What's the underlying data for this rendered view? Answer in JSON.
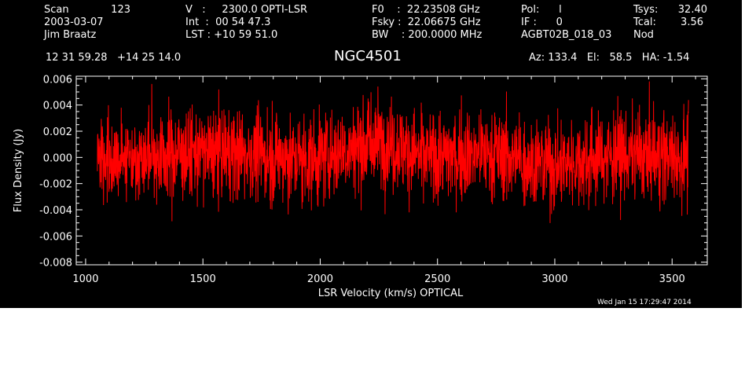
{
  "header": {
    "col1": {
      "scan_label": "Scan",
      "scan_value": "123",
      "date": "2003-03-07",
      "observer": "Jim Braatz"
    },
    "col2": {
      "v_line": "V   :     2300.0 OPTI-LSR",
      "int_line": "Int  :  00 54 47.3",
      "lst_line": "LST : +10 59 51.0"
    },
    "col3": {
      "f0_line": "F0    :  22.23508 GHz",
      "fsky_line": "Fsky :  22.06675 GHz",
      "bw_line": "BW    : 200.0000 MHz"
    },
    "col4": {
      "pol_line": "Pol:      l",
      "if_line": "IF :      0",
      "project": "AGBT02B_018_03"
    },
    "col5": {
      "tsys_label": "Tsys:",
      "tsys_value": "32.40",
      "tcal_label": "Tcal:",
      "tcal_value": "3.56",
      "mode": "Nod"
    },
    "coords": "12 31 59.28   +14 25 14.0",
    "source": "NGC4501",
    "pointing": "Az: 133.4   El:   58.5   HA: -1.54"
  },
  "footer": {
    "date": "Wed Jan 15 17:29:47 2014"
  },
  "colors": {
    "background": "#000000",
    "axes": "#ffffff",
    "series": "#ff0000"
  },
  "chart_data": {
    "type": "line",
    "title": "NGC4501",
    "xlabel": "LSR Velocity (km/s) OPTICAL",
    "ylabel": "Flux Density (Jy)",
    "xlim": [
      960,
      3650
    ],
    "ylim": [
      -0.0082,
      0.0062
    ],
    "x_ticks": [
      1000,
      1500,
      2000,
      2500,
      3000,
      3500
    ],
    "x_tick_labels": [
      "1000",
      "1500",
      "2000",
      "2500",
      "3000",
      "3500"
    ],
    "y_ticks": [
      -0.008,
      -0.006,
      -0.004,
      -0.002,
      0.0,
      0.002,
      0.004,
      0.006
    ],
    "y_tick_labels": [
      "-0.008",
      "-0.006",
      "-0.004",
      "-0.002",
      "0.000",
      "0.002",
      "0.004",
      "0.006"
    ],
    "grid": false,
    "series": [
      {
        "x_start": 1050,
        "x_end": 3570,
        "noise_rms": 0.0018,
        "baseline": [
          {
            "x": 1050,
            "y": 0.0
          },
          {
            "x": 1300,
            "y": 0.0002
          },
          {
            "x": 1600,
            "y": 0.0004
          },
          {
            "x": 1950,
            "y": -0.0002
          },
          {
            "x": 2250,
            "y": 0.0013
          },
          {
            "x": 2450,
            "y": 0.0
          },
          {
            "x": 2700,
            "y": 0.0004
          },
          {
            "x": 3000,
            "y": -0.0006
          },
          {
            "x": 3250,
            "y": 0.0002
          },
          {
            "x": 3570,
            "y": 0.0
          }
        ]
      }
    ]
  }
}
